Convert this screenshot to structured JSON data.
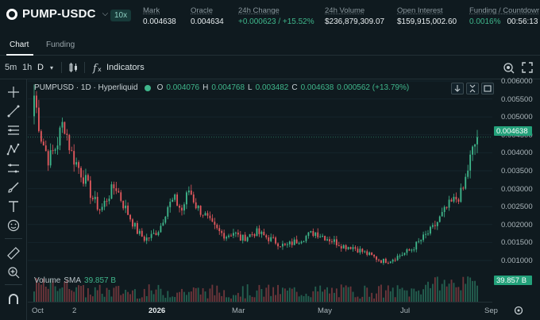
{
  "header": {
    "symbol": "PUMP-USDC",
    "leverage": "10x",
    "stats": [
      {
        "label": "Mark",
        "value": "0.004638"
      },
      {
        "label": "Oracle",
        "value": "0.004634"
      },
      {
        "label": "24h Change",
        "value": "+0.000623 / +15.52%"
      },
      {
        "label": "24h Volume",
        "value": "$236,879,309.07"
      },
      {
        "label": "Open Interest",
        "value": "$159,915,002.60"
      },
      {
        "label": "Funding / Countdowr",
        "value": "0.0016%",
        "countdown": "00:56:13"
      }
    ]
  },
  "tabs": [
    {
      "label": "Chart",
      "active": true
    },
    {
      "label": "Funding",
      "active": false
    }
  ],
  "toolbar": {
    "timeframes": [
      "5m",
      "1h",
      "D"
    ],
    "selected_timeframe": "D",
    "indicators_label": "Indicators"
  },
  "left_tools": [
    "crosshair-icon",
    "trend-line-icon",
    "horizontal-lines-icon",
    "pattern-icon",
    "measure-icon",
    "brush-icon",
    "text-icon",
    "emoji-icon",
    "ruler-icon",
    "zoom-in-icon",
    "magnet-icon"
  ],
  "legend": {
    "title": "PUMPUSD · 1D · Hyperliquid",
    "O": "0.004076",
    "H": "0.004768",
    "L": "0.003482",
    "C": "0.004638",
    "change": "0.000562 (+13.79%)"
  },
  "volume_legend": {
    "label": "Volume",
    "sma_label": "SMA",
    "value": "39.857 B"
  },
  "price_axis": {
    "ticks": [
      "0.006000",
      "0.005500",
      "0.005000",
      "0.004500",
      "0.004000",
      "0.003500",
      "0.003000",
      "0.002500",
      "0.002000",
      "0.001500",
      "0.001000"
    ],
    "current_price": "0.004638",
    "volume_tag": "39.857 B"
  },
  "time_axis": {
    "ticks": [
      {
        "label": "Oct",
        "bold": false
      },
      {
        "label": "2",
        "bold": false
      },
      {
        "label": "2026",
        "bold": true
      },
      {
        "label": "Mar",
        "bold": false
      },
      {
        "label": "May",
        "bold": false
      },
      {
        "label": "Jul",
        "bold": false
      },
      {
        "label": "Sep",
        "bold": false
      }
    ]
  },
  "colors": {
    "up": "#3fb68b",
    "down": "#e2585d",
    "background": "#0f1a1f",
    "accent": "#23a17a"
  },
  "chart_data": {
    "type": "candlestick",
    "ylim": [
      0.0009,
      0.0062
    ],
    "x": [
      "Oct",
      "2",
      "2026",
      "Mar",
      "May",
      "Jul",
      "Sep"
    ],
    "close_series": [
      0.0058,
      0.0046,
      0.004,
      0.0044,
      0.0051,
      0.0042,
      0.0038,
      0.0034,
      0.0029,
      0.0026,
      0.003,
      0.0033,
      0.0028,
      0.0024,
      0.002,
      0.0018,
      0.0019,
      0.0021,
      0.0027,
      0.0029,
      0.0026,
      0.0032,
      0.0027,
      0.0025,
      0.0022,
      0.002,
      0.0019,
      0.002,
      0.0018,
      0.0019,
      0.002,
      0.0019,
      0.0018,
      0.0017,
      0.0016,
      0.0017,
      0.0018,
      0.0019,
      0.002,
      0.0019,
      0.0018,
      0.0017,
      0.0016,
      0.0016,
      0.0015,
      0.0014,
      0.0013,
      0.0012,
      0.0012,
      0.0013,
      0.0014,
      0.0015,
      0.0017,
      0.0019,
      0.0021,
      0.0024,
      0.0027,
      0.0029,
      0.0031,
      0.004,
      0.004638
    ],
    "volume_last": "39.857 B"
  }
}
